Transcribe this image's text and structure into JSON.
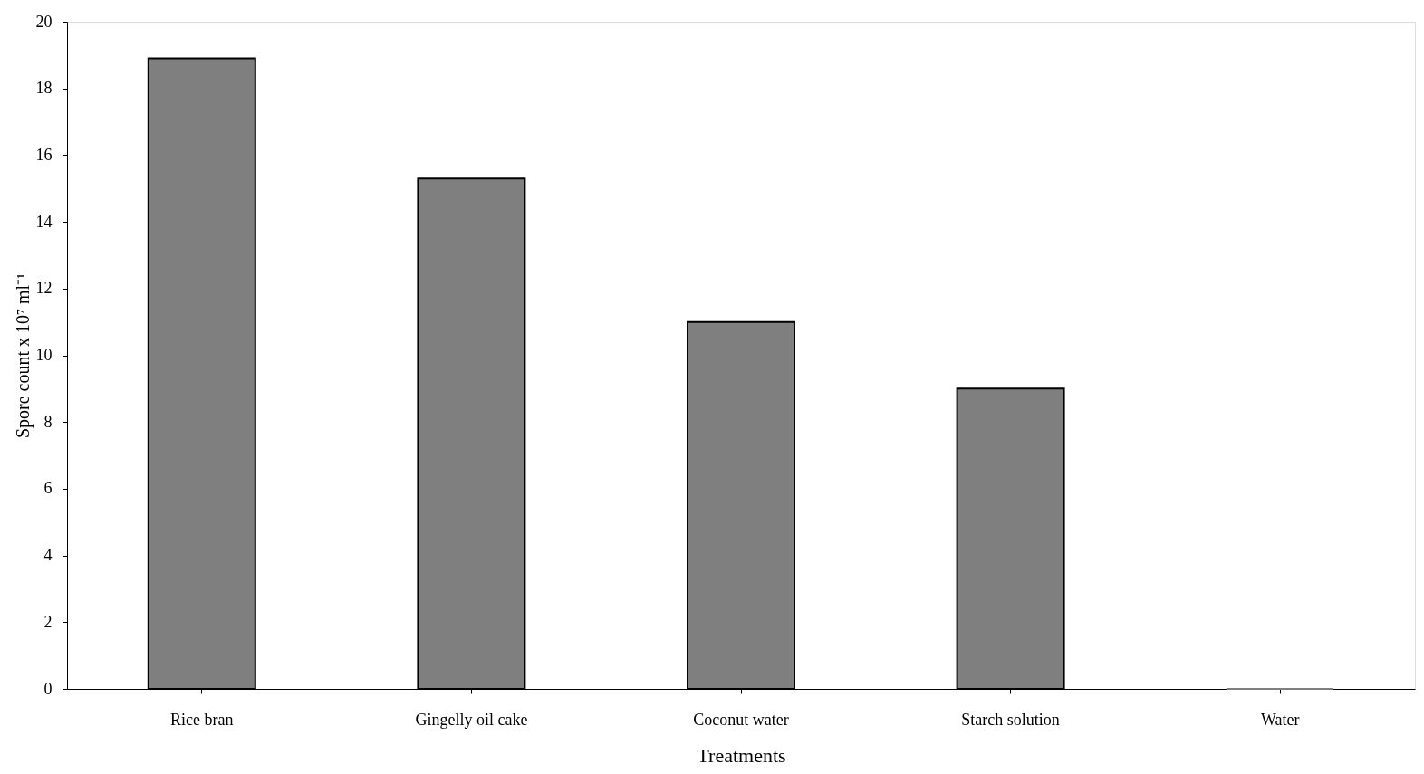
{
  "chart_data": {
    "type": "bar",
    "xlabel": "Treatments",
    "ylabel": "Spore count x 10⁷ ml⁻¹",
    "categories": [
      "Rice bran",
      "Gingelly oil cake",
      "Coconut water",
      "Starch solution",
      "Water"
    ],
    "values": [
      18.9,
      15.3,
      11.0,
      9.0,
      0
    ],
    "color": "#7f7f7f",
    "ylim": [
      0,
      20
    ],
    "yticks": [
      0,
      2,
      4,
      6,
      8,
      10,
      12,
      14,
      16,
      18,
      20
    ],
    "grid": false
  }
}
